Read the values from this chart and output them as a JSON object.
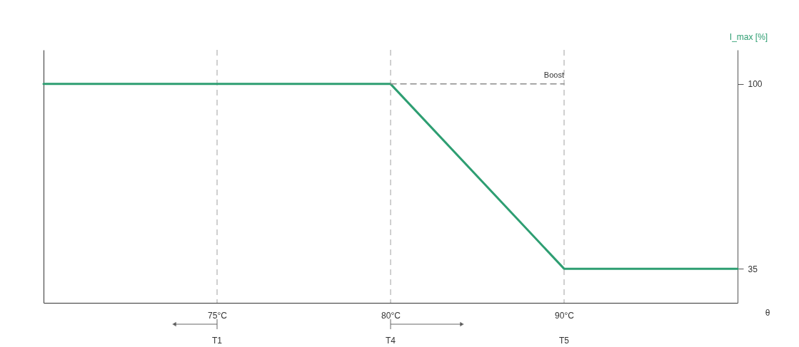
{
  "chart_data": {
    "type": "line",
    "categories": [
      null,
      "75°C",
      "80°C",
      "90°C",
      null
    ],
    "xlabel": "θ",
    "ylabel": "I_max [%]",
    "ylim": [
      23,
      112
    ],
    "yticks": [
      35,
      100
    ],
    "grid": false,
    "marker": "none",
    "series": [
      {
        "color": "#2e9e72",
        "values": [
          100,
          100,
          100,
          35,
          35
        ]
      },
      {
        "name": "Boost",
        "color": "#8c8c8c",
        "line_style": "dashed",
        "values": [
          null,
          null,
          100,
          100,
          null
        ]
      }
    ],
    "ref_lines": [
      {
        "axis": "x",
        "value": "75°C",
        "color": "#a0a0a0",
        "line_style": "dashed"
      },
      {
        "axis": "x",
        "value": "80°C",
        "color": "#a0a0a0",
        "line_style": "dashed"
      },
      {
        "axis": "x",
        "value": "90°C",
        "color": "#a0a0a0",
        "line_style": "dashed"
      }
    ],
    "annotations": [
      "T1",
      "T4",
      "T5"
    ]
  }
}
